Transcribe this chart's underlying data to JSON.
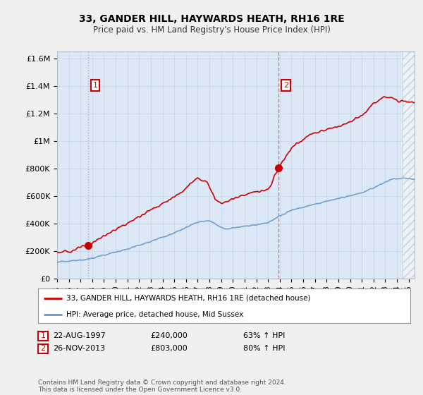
{
  "title": "33, GANDER HILL, HAYWARDS HEATH, RH16 1RE",
  "subtitle": "Price paid vs. HM Land Registry's House Price Index (HPI)",
  "legend_line1": "33, GANDER HILL, HAYWARDS HEATH, RH16 1RE (detached house)",
  "legend_line2": "HPI: Average price, detached house, Mid Sussex",
  "sale1_date_str": "22-AUG-1997",
  "sale1_price_str": "£240,000",
  "sale1_pct_str": "63% ↑ HPI",
  "sale1_year": 1997.64,
  "sale1_price": 240000,
  "sale2_date_str": "26-NOV-2013",
  "sale2_price_str": "£803,000",
  "sale2_pct_str": "80% ↑ HPI",
  "sale2_year": 2013.9,
  "sale2_price": 803000,
  "ylim": [
    0,
    1650000
  ],
  "xlim_start": 1995.0,
  "xlim_end": 2025.5,
  "ylabel_ticks": [
    0,
    200000,
    400000,
    600000,
    800000,
    1000000,
    1200000,
    1400000,
    1600000
  ],
  "ylabel_labels": [
    "£0",
    "£200K",
    "£400K",
    "£600K",
    "£800K",
    "£1M",
    "£1.2M",
    "£1.4M",
    "£1.6M"
  ],
  "red_color": "#cc0000",
  "blue_color": "#6699cc",
  "vline1_color": "#aaaaaa",
  "vline2_color": "#cc6666",
  "footnote": "Contains HM Land Registry data © Crown copyright and database right 2024.\nThis data is licensed under the Open Government Licence v3.0.",
  "background_color": "#f0f0f0",
  "plot_bg_color": "#dce8f5",
  "hatch_start": 2024.5,
  "red_anchors_x": [
    1995.0,
    1996.0,
    1997.0,
    1997.64,
    1999.0,
    2001.0,
    2003.0,
    2005.0,
    2007.0,
    2007.8,
    2008.5,
    2009.0,
    2010.0,
    2011.0,
    2012.0,
    2013.0,
    2013.9,
    2015.0,
    2016.5,
    2018.0,
    2019.5,
    2021.0,
    2022.0,
    2023.0,
    2024.0,
    2025.5
  ],
  "red_anchors_y": [
    190000,
    195000,
    225000,
    240000,
    310000,
    400000,
    500000,
    590000,
    730000,
    700000,
    580000,
    545000,
    580000,
    610000,
    630000,
    640000,
    803000,
    950000,
    1040000,
    1080000,
    1120000,
    1180000,
    1270000,
    1320000,
    1300000,
    1280000
  ],
  "hpi_anchors_x": [
    1995.0,
    1996.5,
    1997.64,
    1999.0,
    2001.0,
    2003.0,
    2005.0,
    2007.0,
    2008.0,
    2009.0,
    2009.5,
    2011.0,
    2012.0,
    2013.0,
    2013.9,
    2015.0,
    2016.5,
    2018.0,
    2019.5,
    2021.0,
    2022.5,
    2023.5,
    2024.5,
    2025.5
  ],
  "hpi_anchors_y": [
    120000,
    130000,
    140000,
    170000,
    215000,
    270000,
    330000,
    410000,
    420000,
    370000,
    360000,
    380000,
    390000,
    405000,
    450000,
    495000,
    530000,
    560000,
    590000,
    620000,
    680000,
    720000,
    730000,
    720000
  ]
}
